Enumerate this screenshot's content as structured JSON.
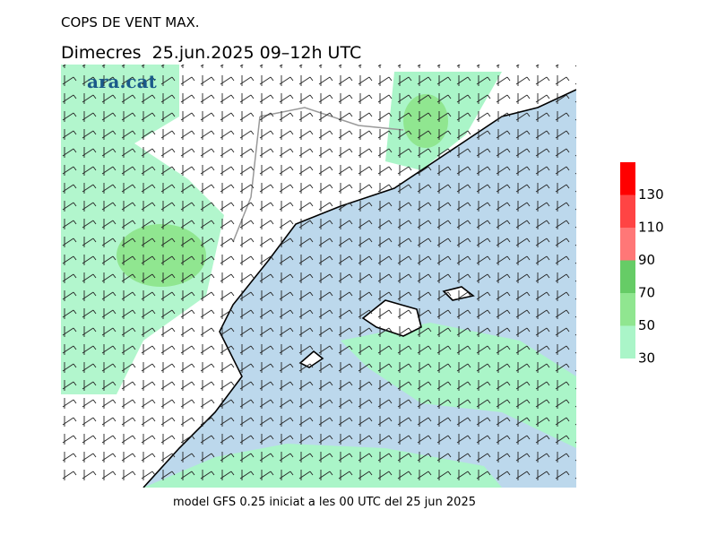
{
  "header": {
    "title": "COPS DE VENT MAX.",
    "subtitle": "Dimecres  25.jun.2025 09–12h UTC"
  },
  "logo": "ara.cat",
  "footer": "model GFS 0.25 iniciat a les 00 UTC del 25 jun 2025",
  "legend": {
    "ticks": [
      30,
      50,
      70,
      90,
      110,
      130
    ],
    "colors": [
      "#aaf5c8",
      "#90e690",
      "#66cc66",
      "#ff7777",
      "#ff4444",
      "#ff0000"
    ]
  }
}
